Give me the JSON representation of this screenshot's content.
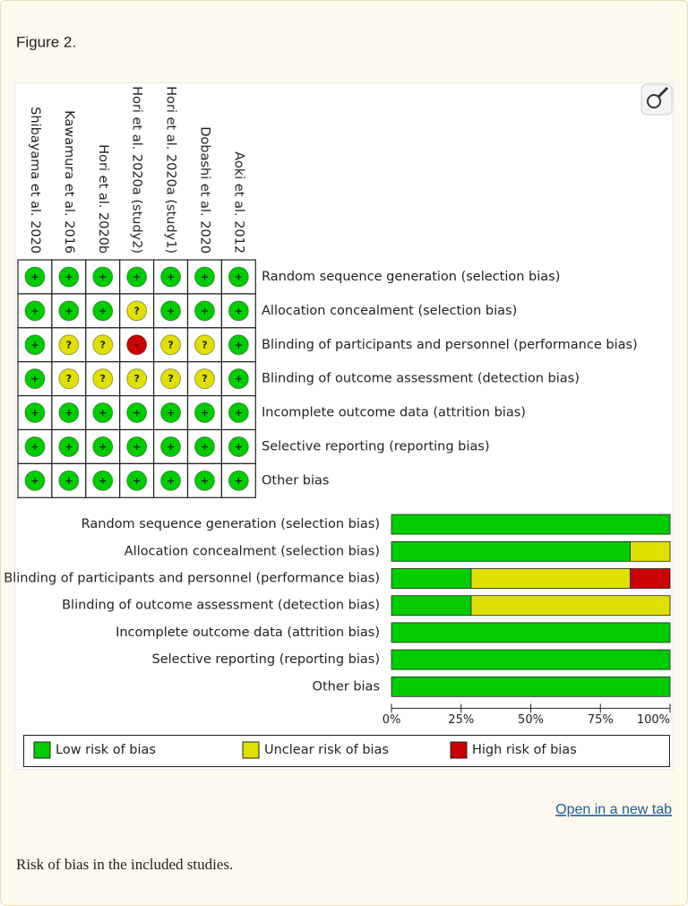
{
  "header": {
    "title": "Figure 2."
  },
  "chart_data": [
    {
      "type": "grid",
      "studies": [
        "Shibayama et al. 2020",
        "Kawamura et al. 2016",
        "Hori et al. 2020b",
        "Hori et al. 2020a (study2)",
        "Hori et al. 2020a (study1)",
        "Dobashi et al. 2020",
        "Aoki et al. 2012"
      ],
      "judgments": [
        [
          "+",
          "+",
          "+",
          "+",
          "+",
          "+",
          "+"
        ],
        [
          "+",
          "+",
          "+",
          "?",
          "+",
          "+",
          "+"
        ],
        [
          "+",
          "?",
          "?",
          "-",
          "?",
          "?",
          "+"
        ],
        [
          "+",
          "?",
          "?",
          "?",
          "?",
          "?",
          "+"
        ],
        [
          "+",
          "+",
          "+",
          "+",
          "+",
          "+",
          "+"
        ],
        [
          "+",
          "+",
          "+",
          "+",
          "+",
          "+",
          "+"
        ],
        [
          "+",
          "+",
          "+",
          "+",
          "+",
          "+",
          "+"
        ]
      ]
    },
    {
      "type": "bar",
      "orientation": "horizontal",
      "stacked": true,
      "categories": [
        "Random sequence generation (selection bias)",
        "Allocation concealment (selection bias)",
        "Blinding of participants and personnel (performance bias)",
        "Blinding of outcome assessment (detection bias)",
        "Incomplete outcome data (attrition bias)",
        "Selective reporting (reporting bias)",
        "Other bias"
      ],
      "series": [
        {
          "name": "Low risk of bias",
          "symbol": "+",
          "color": "#00cc00",
          "values": [
            100,
            85.7,
            28.6,
            28.6,
            100,
            100,
            100
          ]
        },
        {
          "name": "Unclear risk of bias",
          "symbol": "?",
          "color": "#e0e000",
          "values": [
            0,
            14.3,
            57.1,
            71.4,
            0,
            0,
            0
          ]
        },
        {
          "name": "High risk of bias",
          "symbol": "-",
          "color": "#cc0000",
          "values": [
            0,
            0,
            14.3,
            0,
            0,
            0,
            0
          ]
        }
      ],
      "xlim": [
        0,
        100
      ],
      "xticks": [
        {
          "value": 0,
          "label": "0%"
        },
        {
          "value": 25,
          "label": "25%"
        },
        {
          "value": 50,
          "label": "50%"
        },
        {
          "value": 75,
          "label": "75%"
        },
        {
          "value": 100,
          "label": "100%"
        }
      ]
    }
  ],
  "link": "Open in a new tab",
  "caption": "Risk of bias in the included studies."
}
